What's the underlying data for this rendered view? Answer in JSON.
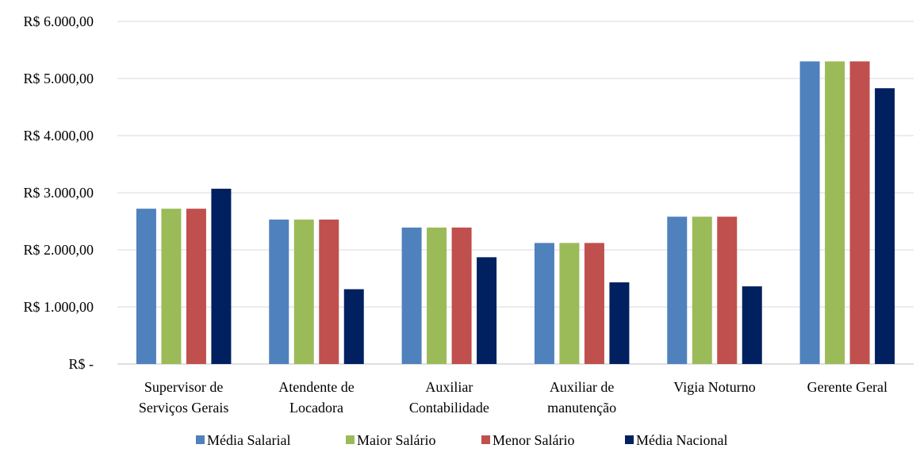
{
  "chart_data": {
    "type": "bar",
    "categories": [
      [
        "Supervisor de",
        "Serviços Gerais"
      ],
      [
        "Atendente de",
        "Locadora"
      ],
      [
        "Auxiliar",
        "Contabilidade"
      ],
      [
        "Auxiliar de",
        "manutenção"
      ],
      [
        "Vigia Noturno"
      ],
      [
        "Gerente Geral"
      ]
    ],
    "series": [
      {
        "name": "Média Salarial",
        "color": "#4f81bd",
        "values": [
          2720,
          2530,
          2390,
          2120,
          2580,
          5300
        ]
      },
      {
        "name": "Maior Salário",
        "color": "#9bbb59",
        "values": [
          2720,
          2530,
          2390,
          2120,
          2580,
          5300
        ]
      },
      {
        "name": "Menor Salário",
        "color": "#c0504d",
        "values": [
          2720,
          2530,
          2390,
          2120,
          2580,
          5300
        ]
      },
      {
        "name": "Média Nacional",
        "color": "#002060",
        "values": [
          3070,
          1310,
          1870,
          1430,
          1360,
          4830
        ]
      }
    ],
    "yticks": [
      {
        "value": 0,
        "label": "R$ -"
      },
      {
        "value": 1000,
        "label": "R$ 1.000,00"
      },
      {
        "value": 2000,
        "label": "R$ 2.000,00"
      },
      {
        "value": 3000,
        "label": "R$ 3.000,00"
      },
      {
        "value": 4000,
        "label": "R$ 4.000,00"
      },
      {
        "value": 5000,
        "label": "R$ 5.000,00"
      },
      {
        "value": 6000,
        "label": "R$ 6.000,00"
      }
    ],
    "ylim": [
      0,
      6000
    ],
    "grid": true,
    "legend_position": "bottom",
    "title": "",
    "xlabel": "",
    "ylabel": ""
  }
}
